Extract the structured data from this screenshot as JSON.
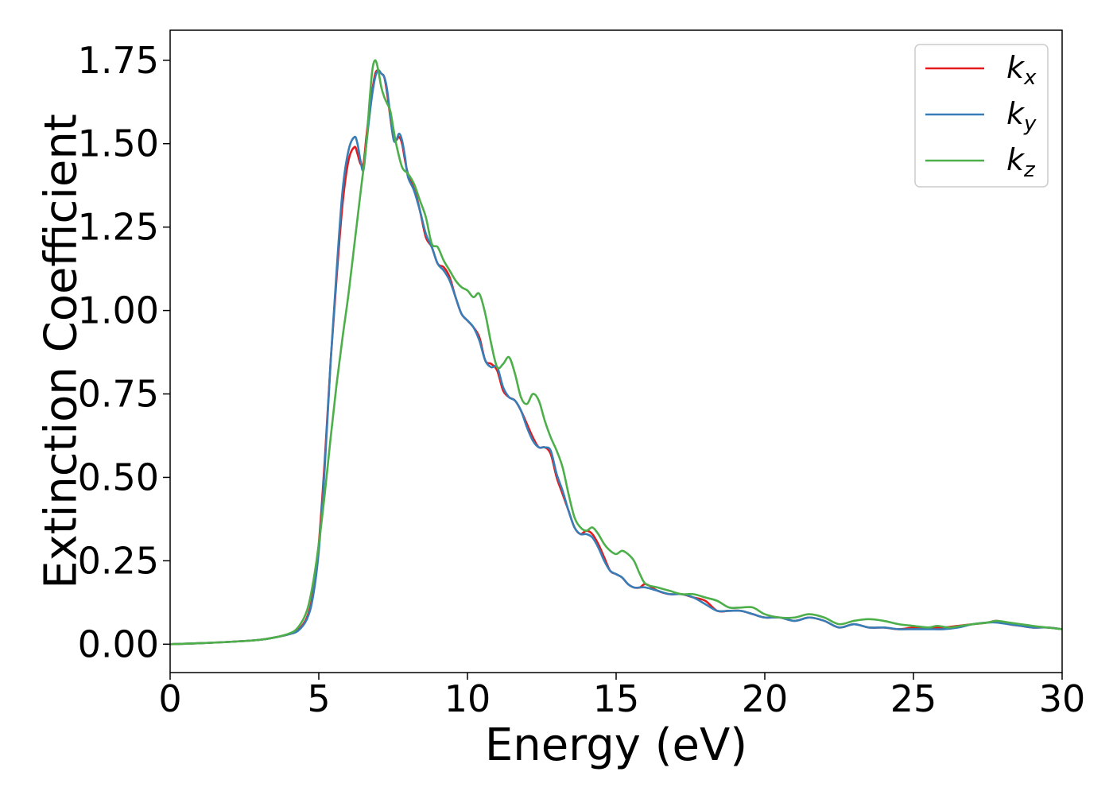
{
  "chart_data": {
    "type": "line",
    "title": "",
    "xlabel": "Energy (eV)",
    "ylabel": "Extinction Coefficient",
    "xlim": [
      0,
      30
    ],
    "ylim": [
      -0.085,
      1.84
    ],
    "xticks": [
      0,
      5,
      10,
      15,
      20,
      25,
      30
    ],
    "xtick_labels": [
      "0",
      "5",
      "10",
      "15",
      "20",
      "25",
      "30"
    ],
    "yticks": [
      0.0,
      0.25,
      0.5,
      0.75,
      1.0,
      1.25,
      1.5,
      1.75
    ],
    "ytick_labels": [
      "0.00",
      "0.25",
      "0.50",
      "0.75",
      "1.00",
      "1.25",
      "1.50",
      "1.75"
    ],
    "grid": false,
    "legend_position": "top-right",
    "series": [
      {
        "name": "k_x",
        "legend_base": "k",
        "legend_sub": "x",
        "color": "#e41a1c",
        "x": [
          0,
          1,
          2,
          3,
          3.5,
          4,
          4.3,
          4.6,
          4.8,
          5.0,
          5.2,
          5.4,
          5.6,
          5.8,
          6.0,
          6.2,
          6.3,
          6.4,
          6.5,
          6.6,
          6.7,
          6.8,
          6.9,
          7.0,
          7.1,
          7.2,
          7.3,
          7.5,
          7.6,
          7.7,
          7.8,
          7.9,
          8.0,
          8.2,
          8.4,
          8.6,
          8.8,
          9.0,
          9.2,
          9.4,
          9.6,
          9.8,
          10.0,
          10.2,
          10.4,
          10.6,
          10.8,
          11.0,
          11.2,
          11.4,
          11.6,
          11.8,
          12.0,
          12.2,
          12.4,
          12.6,
          12.8,
          13.0,
          13.2,
          13.4,
          13.6,
          13.8,
          14.0,
          14.2,
          14.4,
          14.6,
          14.8,
          15.0,
          15.2,
          15.4,
          15.6,
          15.8,
          16.0,
          16.4,
          16.8,
          17.2,
          17.6,
          18.0,
          18.4,
          18.8,
          19.2,
          19.6,
          20.0,
          20.5,
          21.0,
          21.5,
          22.0,
          22.5,
          23.0,
          23.5,
          24.0,
          24.5,
          25.0,
          25.5,
          26.0,
          26.5,
          27.0,
          27.5,
          27.8,
          28.2,
          28.6,
          29.0,
          29.5,
          30.0
        ],
        "y": [
          0.0,
          0.003,
          0.007,
          0.013,
          0.02,
          0.03,
          0.042,
          0.08,
          0.15,
          0.3,
          0.55,
          0.85,
          1.1,
          1.32,
          1.45,
          1.49,
          1.47,
          1.44,
          1.44,
          1.52,
          1.6,
          1.66,
          1.71,
          1.72,
          1.71,
          1.7,
          1.65,
          1.52,
          1.51,
          1.52,
          1.5,
          1.45,
          1.41,
          1.37,
          1.3,
          1.22,
          1.19,
          1.14,
          1.13,
          1.1,
          1.04,
          0.99,
          0.97,
          0.95,
          0.92,
          0.85,
          0.84,
          0.82,
          0.76,
          0.74,
          0.73,
          0.7,
          0.66,
          0.62,
          0.59,
          0.59,
          0.57,
          0.5,
          0.45,
          0.4,
          0.35,
          0.33,
          0.34,
          0.33,
          0.3,
          0.26,
          0.22,
          0.21,
          0.2,
          0.18,
          0.17,
          0.17,
          0.18,
          0.16,
          0.15,
          0.15,
          0.14,
          0.13,
          0.1,
          0.1,
          0.1,
          0.09,
          0.08,
          0.08,
          0.07,
          0.08,
          0.07,
          0.05,
          0.06,
          0.05,
          0.05,
          0.045,
          0.05,
          0.05,
          0.05,
          0.055,
          0.06,
          0.065,
          0.07,
          0.06,
          0.055,
          0.05,
          0.05,
          0.045
        ]
      },
      {
        "name": "k_y",
        "legend_base": "k",
        "legend_sub": "y",
        "color": "#377eb8",
        "x": [
          0,
          1,
          2,
          3,
          3.5,
          4,
          4.3,
          4.6,
          4.8,
          5.0,
          5.2,
          5.4,
          5.6,
          5.8,
          6.0,
          6.2,
          6.3,
          6.4,
          6.5,
          6.6,
          6.7,
          6.8,
          6.9,
          7.0,
          7.1,
          7.2,
          7.3,
          7.5,
          7.6,
          7.7,
          7.8,
          7.9,
          8.0,
          8.2,
          8.4,
          8.6,
          8.8,
          9.0,
          9.2,
          9.4,
          9.6,
          9.8,
          10.0,
          10.2,
          10.4,
          10.6,
          10.8,
          11.0,
          11.2,
          11.4,
          11.6,
          11.8,
          12.0,
          12.2,
          12.4,
          12.6,
          12.8,
          13.0,
          13.2,
          13.4,
          13.6,
          13.8,
          14.0,
          14.2,
          14.4,
          14.6,
          14.8,
          15.0,
          15.2,
          15.4,
          15.6,
          15.8,
          16.0,
          16.4,
          16.8,
          17.2,
          17.6,
          18.0,
          18.4,
          18.8,
          19.2,
          19.6,
          20.0,
          20.5,
          21.0,
          21.5,
          22.0,
          22.5,
          23.0,
          23.5,
          24.0,
          24.5,
          25.0,
          25.5,
          26.0,
          26.5,
          27.0,
          27.5,
          27.8,
          28.2,
          28.6,
          29.0,
          29.5,
          30.0
        ],
        "y": [
          0.0,
          0.003,
          0.007,
          0.013,
          0.02,
          0.03,
          0.04,
          0.075,
          0.14,
          0.28,
          0.53,
          0.85,
          1.12,
          1.36,
          1.48,
          1.52,
          1.5,
          1.45,
          1.42,
          1.5,
          1.58,
          1.65,
          1.7,
          1.72,
          1.71,
          1.7,
          1.66,
          1.52,
          1.51,
          1.53,
          1.51,
          1.46,
          1.4,
          1.36,
          1.3,
          1.23,
          1.19,
          1.14,
          1.12,
          1.09,
          1.04,
          0.99,
          0.97,
          0.95,
          0.91,
          0.85,
          0.83,
          0.83,
          0.77,
          0.74,
          0.73,
          0.7,
          0.65,
          0.61,
          0.59,
          0.59,
          0.58,
          0.51,
          0.46,
          0.4,
          0.35,
          0.33,
          0.33,
          0.32,
          0.29,
          0.25,
          0.22,
          0.21,
          0.2,
          0.18,
          0.17,
          0.17,
          0.17,
          0.16,
          0.15,
          0.15,
          0.14,
          0.12,
          0.1,
          0.1,
          0.1,
          0.09,
          0.08,
          0.08,
          0.07,
          0.08,
          0.07,
          0.05,
          0.06,
          0.05,
          0.05,
          0.045,
          0.045,
          0.045,
          0.045,
          0.05,
          0.06,
          0.065,
          0.065,
          0.06,
          0.055,
          0.05,
          0.05,
          0.045
        ]
      },
      {
        "name": "k_z",
        "legend_base": "k",
        "legend_sub": "z",
        "color": "#4daf4a",
        "x": [
          0,
          1,
          2,
          3,
          3.5,
          4,
          4.3,
          4.6,
          4.8,
          5.0,
          5.2,
          5.4,
          5.6,
          5.8,
          6.0,
          6.2,
          6.4,
          6.6,
          6.7,
          6.8,
          6.9,
          7.0,
          7.1,
          7.2,
          7.3,
          7.4,
          7.5,
          7.6,
          7.8,
          8.0,
          8.2,
          8.4,
          8.6,
          8.8,
          9.0,
          9.2,
          9.4,
          9.6,
          9.8,
          10.0,
          10.2,
          10.4,
          10.6,
          10.8,
          11.0,
          11.2,
          11.4,
          11.6,
          11.8,
          12.0,
          12.2,
          12.4,
          12.6,
          12.8,
          13.0,
          13.2,
          13.4,
          13.6,
          13.8,
          14.0,
          14.2,
          14.4,
          14.6,
          14.8,
          15.0,
          15.2,
          15.4,
          15.6,
          15.8,
          16.0,
          16.4,
          16.8,
          17.2,
          17.6,
          18.0,
          18.4,
          18.8,
          19.2,
          19.6,
          20.0,
          20.5,
          21.0,
          21.5,
          22.0,
          22.5,
          23.0,
          23.5,
          24.0,
          24.5,
          25.0,
          25.5,
          25.8,
          26.2,
          26.6,
          27.0,
          27.5,
          27.8,
          28.2,
          28.6,
          29.0,
          29.5,
          30.0
        ],
        "y": [
          0.0,
          0.003,
          0.007,
          0.013,
          0.02,
          0.032,
          0.05,
          0.1,
          0.18,
          0.3,
          0.45,
          0.62,
          0.78,
          0.92,
          1.05,
          1.2,
          1.35,
          1.5,
          1.62,
          1.72,
          1.75,
          1.72,
          1.67,
          1.64,
          1.62,
          1.6,
          1.55,
          1.5,
          1.43,
          1.41,
          1.38,
          1.33,
          1.28,
          1.2,
          1.19,
          1.15,
          1.12,
          1.09,
          1.07,
          1.06,
          1.04,
          1.05,
          0.99,
          0.9,
          0.83,
          0.84,
          0.86,
          0.81,
          0.74,
          0.72,
          0.75,
          0.73,
          0.67,
          0.62,
          0.58,
          0.53,
          0.45,
          0.38,
          0.35,
          0.34,
          0.35,
          0.33,
          0.3,
          0.28,
          0.27,
          0.28,
          0.27,
          0.25,
          0.21,
          0.18,
          0.17,
          0.16,
          0.15,
          0.15,
          0.14,
          0.13,
          0.11,
          0.11,
          0.11,
          0.09,
          0.08,
          0.08,
          0.09,
          0.08,
          0.06,
          0.07,
          0.075,
          0.07,
          0.06,
          0.055,
          0.05,
          0.055,
          0.05,
          0.055,
          0.06,
          0.065,
          0.07,
          0.065,
          0.06,
          0.055,
          0.05,
          0.045
        ]
      }
    ]
  }
}
